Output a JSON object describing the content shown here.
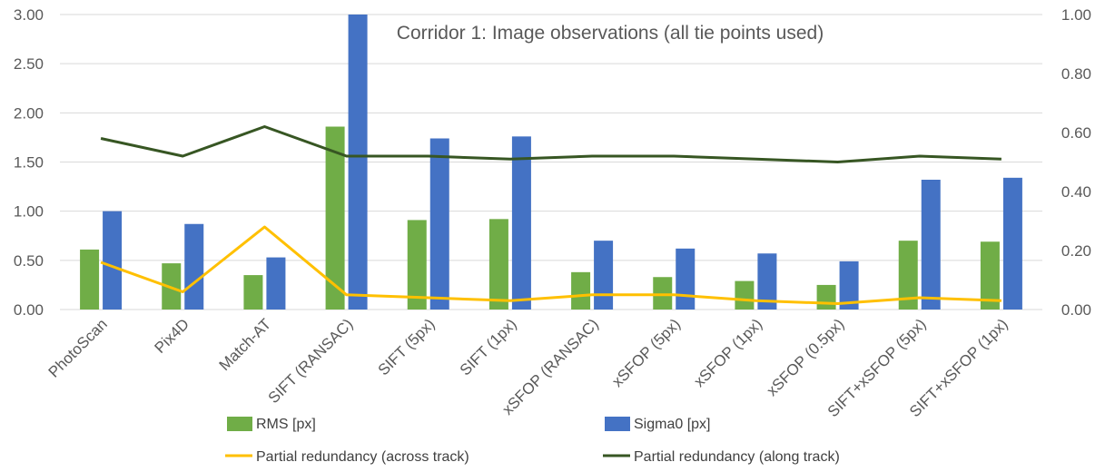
{
  "chart_data": {
    "type": "bar",
    "title": "Corridor 1: Image observations (all tie points used)",
    "categories": [
      "PhotoScan",
      "Pix4D",
      "Match-AT",
      "SIFT (RANSAC)",
      "SIFT (5px)",
      "SIFT (1px)",
      "xSFOP (RANSAC)",
      "xSFOP (5px)",
      "xSFOP (1px)",
      "xSFOP (0.5px)",
      "SIFT+xSFOP (5px)",
      "SIFT+xSFOP (1px)"
    ],
    "series": [
      {
        "name": "RMS [px]",
        "type": "bar",
        "axis": "left",
        "color": "#70ad47",
        "values": [
          0.61,
          0.47,
          0.35,
          1.86,
          0.91,
          0.92,
          0.38,
          0.33,
          0.29,
          0.25,
          0.7,
          0.69
        ]
      },
      {
        "name": "Sigma0 [px]",
        "type": "bar",
        "axis": "left",
        "color": "#4472c4",
        "values": [
          1.0,
          0.87,
          0.53,
          3.0,
          1.74,
          1.76,
          0.7,
          0.62,
          0.57,
          0.49,
          1.32,
          1.34
        ]
      },
      {
        "name": "Partial redundancy (across track)",
        "type": "line",
        "axis": "right",
        "color": "#ffc000",
        "values": [
          0.16,
          0.06,
          0.28,
          0.05,
          0.04,
          0.03,
          0.05,
          0.05,
          0.03,
          0.02,
          0.04,
          0.03
        ]
      },
      {
        "name": "Partial redundancy (along track)",
        "type": "line",
        "axis": "right",
        "color": "#375623",
        "values": [
          0.58,
          0.52,
          0.62,
          0.52,
          0.52,
          0.51,
          0.52,
          0.52,
          0.51,
          0.5,
          0.52,
          0.51
        ]
      }
    ],
    "y_left": {
      "min": 0,
      "max": 3,
      "ticks": [
        "0.00",
        "0.50",
        "1.00",
        "1.50",
        "2.00",
        "2.50",
        "3.00"
      ]
    },
    "y_right": {
      "min": 0,
      "max": 1,
      "ticks": [
        "0.00",
        "0.20",
        "0.40",
        "0.60",
        "0.80",
        "1.00"
      ]
    },
    "grid": true,
    "legend_position": "bottom"
  }
}
